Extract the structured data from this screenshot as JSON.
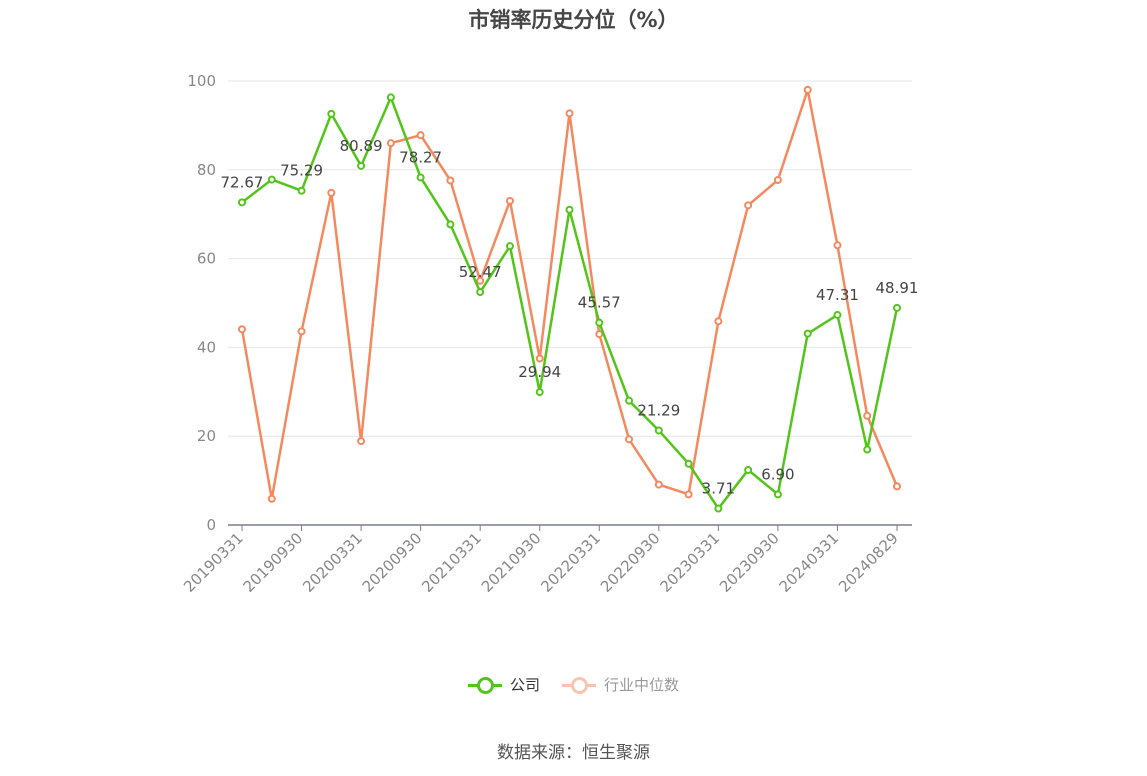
{
  "title": "市销率历史分位（%）",
  "source": "数据来源：恒生聚源",
  "legend": [
    {
      "name": "公司",
      "color": "#52c41a"
    },
    {
      "name": "行业中位数",
      "color": "#f4895f"
    }
  ],
  "chart_data": {
    "type": "line",
    "title": "市销率历史分位（%）",
    "xlabel": "",
    "ylabel": "",
    "ylim": [
      0,
      100
    ],
    "yticks": [
      0,
      20,
      40,
      60,
      80,
      100
    ],
    "grid": true,
    "legend_position": "bottom",
    "x": [
      "20190331",
      "20190630",
      "20190930",
      "20191231",
      "20200331",
      "20200630",
      "20200930",
      "20201231",
      "20210331",
      "20210630",
      "20210930",
      "20211231",
      "20220331",
      "20220630",
      "20220930",
      "20221231",
      "20230331",
      "20230630",
      "20230930",
      "20231231",
      "20240331",
      "20240630",
      "20240829"
    ],
    "xticks": [
      "20190331",
      "20190930",
      "20200331",
      "20200930",
      "20210331",
      "20210930",
      "20220331",
      "20220930",
      "20230331",
      "20230930",
      "20240331",
      "20240829"
    ],
    "series": [
      {
        "name": "公司",
        "color": "#52c41a",
        "values": [
          72.67,
          77.8,
          75.29,
          92.6,
          80.89,
          96.3,
          78.27,
          67.7,
          52.47,
          62.8,
          29.94,
          71.0,
          45.57,
          28.0,
          21.29,
          13.8,
          3.71,
          12.4,
          6.9,
          43.1,
          47.31,
          17.0,
          48.91
        ],
        "labels": [
          "72.67",
          "",
          "75.29",
          "",
          "80.89",
          "",
          "78.27",
          "",
          "52.47",
          "",
          "29.94",
          "",
          "45.57",
          "",
          "21.29",
          "",
          "3.71",
          "",
          "6.90",
          "",
          "47.31",
          "",
          "48.91"
        ]
      },
      {
        "name": "行业中位数",
        "color": "#f4895f",
        "values": [
          44.1,
          5.9,
          43.6,
          74.8,
          18.9,
          86.0,
          87.8,
          77.6,
          55.0,
          73.0,
          37.5,
          92.7,
          43.0,
          19.3,
          9.1,
          6.9,
          45.9,
          72.0,
          77.7,
          98.0,
          63.0,
          24.6,
          8.7
        ]
      }
    ]
  }
}
